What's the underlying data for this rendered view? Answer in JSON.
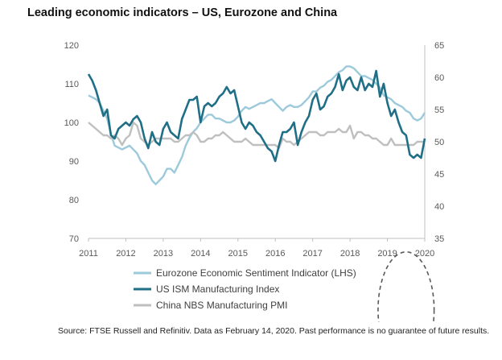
{
  "chart_data": {
    "type": "line",
    "title": "Leading economic indicators – US, Eurozone and China",
    "x_ticks": [
      "2011",
      "2012",
      "2013",
      "2014",
      "2015",
      "2016",
      "2017",
      "2018",
      "2019",
      "2020"
    ],
    "xlim": [
      2011,
      2020
    ],
    "y_left": {
      "ticks": [
        "120",
        "110",
        "100",
        "90",
        "80",
        "70"
      ],
      "ylim": [
        70,
        120
      ]
    },
    "y_right": {
      "ticks": [
        "65",
        "60",
        "55",
        "50",
        "45",
        "40",
        "35"
      ],
      "ylim": [
        35,
        65
      ]
    },
    "legend_position": "bottom",
    "series": [
      {
        "name": "Eurozone Economic Sentiment Indicator (LHS)",
        "axis": "left",
        "color": "#9ccadb",
        "points": [
          [
            2011.0,
            107
          ],
          [
            2011.1,
            106.5
          ],
          [
            2011.2,
            106
          ],
          [
            2011.3,
            105
          ],
          [
            2011.4,
            103
          ],
          [
            2011.5,
            101
          ],
          [
            2011.6,
            97
          ],
          [
            2011.7,
            94
          ],
          [
            2011.8,
            93.5
          ],
          [
            2011.9,
            93
          ],
          [
            2012.0,
            93.5
          ],
          [
            2012.1,
            94
          ],
          [
            2012.2,
            93
          ],
          [
            2012.3,
            92
          ],
          [
            2012.4,
            90
          ],
          [
            2012.5,
            89
          ],
          [
            2012.6,
            87
          ],
          [
            2012.7,
            85
          ],
          [
            2012.8,
            84
          ],
          [
            2012.9,
            85
          ],
          [
            2013.0,
            86
          ],
          [
            2013.1,
            88
          ],
          [
            2013.2,
            88
          ],
          [
            2013.3,
            87
          ],
          [
            2013.4,
            89
          ],
          [
            2013.5,
            91
          ],
          [
            2013.6,
            94
          ],
          [
            2013.7,
            96
          ],
          [
            2013.8,
            97.5
          ],
          [
            2013.9,
            98.5
          ],
          [
            2014.0,
            100
          ],
          [
            2014.1,
            101
          ],
          [
            2014.2,
            102
          ],
          [
            2014.3,
            102
          ],
          [
            2014.4,
            101
          ],
          [
            2014.5,
            101
          ],
          [
            2014.6,
            100.5
          ],
          [
            2014.7,
            100
          ],
          [
            2014.8,
            100
          ],
          [
            2014.9,
            100.5
          ],
          [
            2015.0,
            101.5
          ],
          [
            2015.1,
            103
          ],
          [
            2015.2,
            104
          ],
          [
            2015.3,
            103.5
          ],
          [
            2015.4,
            104
          ],
          [
            2015.5,
            104.5
          ],
          [
            2015.6,
            105
          ],
          [
            2015.7,
            105
          ],
          [
            2015.8,
            105.5
          ],
          [
            2015.9,
            106
          ],
          [
            2016.0,
            105
          ],
          [
            2016.1,
            104
          ],
          [
            2016.2,
            103
          ],
          [
            2016.3,
            104
          ],
          [
            2016.4,
            104.5
          ],
          [
            2016.5,
            104
          ],
          [
            2016.6,
            104
          ],
          [
            2016.7,
            104.5
          ],
          [
            2016.8,
            105.5
          ],
          [
            2016.9,
            106.5
          ],
          [
            2017.0,
            108
          ],
          [
            2017.1,
            108
          ],
          [
            2017.2,
            109
          ],
          [
            2017.3,
            109.5
          ],
          [
            2017.4,
            110.5
          ],
          [
            2017.5,
            111
          ],
          [
            2017.6,
            112
          ],
          [
            2017.7,
            113
          ],
          [
            2017.8,
            113.5
          ],
          [
            2017.9,
            114.5
          ],
          [
            2018.0,
            114.5
          ],
          [
            2018.1,
            114
          ],
          [
            2018.2,
            113
          ],
          [
            2018.3,
            112
          ],
          [
            2018.4,
            112
          ],
          [
            2018.5,
            111.5
          ],
          [
            2018.6,
            111
          ],
          [
            2018.7,
            110
          ],
          [
            2018.8,
            109
          ],
          [
            2018.9,
            107
          ],
          [
            2019.0,
            106.5
          ],
          [
            2019.1,
            106
          ],
          [
            2019.2,
            105
          ],
          [
            2019.3,
            104.5
          ],
          [
            2019.4,
            104
          ],
          [
            2019.5,
            103
          ],
          [
            2019.6,
            102.5
          ],
          [
            2019.7,
            101
          ],
          [
            2019.8,
            100.5
          ],
          [
            2019.9,
            101
          ],
          [
            2020.0,
            102.5
          ]
        ]
      },
      {
        "name": "US ISM Manufacturing Index",
        "axis": "right",
        "color": "#1f6f87",
        "points": [
          [
            2011.0,
            60.5
          ],
          [
            2011.1,
            59.5
          ],
          [
            2011.2,
            58
          ],
          [
            2011.3,
            56
          ],
          [
            2011.4,
            54
          ],
          [
            2011.5,
            55
          ],
          [
            2011.6,
            51
          ],
          [
            2011.7,
            50.5
          ],
          [
            2011.8,
            52
          ],
          [
            2011.9,
            52.5
          ],
          [
            2012.0,
            53
          ],
          [
            2012.1,
            52.5
          ],
          [
            2012.2,
            53.5
          ],
          [
            2012.3,
            54
          ],
          [
            2012.4,
            53
          ],
          [
            2012.5,
            50.5
          ],
          [
            2012.6,
            49
          ],
          [
            2012.7,
            51.5
          ],
          [
            2012.8,
            50
          ],
          [
            2012.9,
            49.5
          ],
          [
            2013.0,
            52
          ],
          [
            2013.1,
            53
          ],
          [
            2013.2,
            51.5
          ],
          [
            2013.3,
            51
          ],
          [
            2013.4,
            50.5
          ],
          [
            2013.5,
            53.5
          ],
          [
            2013.6,
            55
          ],
          [
            2013.7,
            56.5
          ],
          [
            2013.8,
            56.5
          ],
          [
            2013.9,
            57
          ],
          [
            2014.0,
            53
          ],
          [
            2014.1,
            55.5
          ],
          [
            2014.2,
            56
          ],
          [
            2014.3,
            55.5
          ],
          [
            2014.4,
            56
          ],
          [
            2014.5,
            57
          ],
          [
            2014.6,
            57.5
          ],
          [
            2014.7,
            58.5
          ],
          [
            2014.8,
            57.5
          ],
          [
            2014.9,
            58
          ],
          [
            2015.0,
            55.5
          ],
          [
            2015.1,
            53
          ],
          [
            2015.2,
            52
          ],
          [
            2015.3,
            53
          ],
          [
            2015.4,
            52.5
          ],
          [
            2015.5,
            51.5
          ],
          [
            2015.6,
            51
          ],
          [
            2015.7,
            50
          ],
          [
            2015.8,
            49
          ],
          [
            2015.9,
            48.5
          ],
          [
            2016.0,
            47
          ],
          [
            2016.1,
            49.5
          ],
          [
            2016.2,
            51.5
          ],
          [
            2016.3,
            51.5
          ],
          [
            2016.4,
            52
          ],
          [
            2016.5,
            53
          ],
          [
            2016.6,
            49.5
          ],
          [
            2016.7,
            51.5
          ],
          [
            2016.8,
            53
          ],
          [
            2016.9,
            54
          ],
          [
            2017.0,
            56.5
          ],
          [
            2017.1,
            57.5
          ],
          [
            2017.2,
            55
          ],
          [
            2017.3,
            55.5
          ],
          [
            2017.4,
            57
          ],
          [
            2017.5,
            57.5
          ],
          [
            2017.6,
            58.5
          ],
          [
            2017.7,
            60.5
          ],
          [
            2017.8,
            58
          ],
          [
            2017.9,
            59.5
          ],
          [
            2018.0,
            60
          ],
          [
            2018.1,
            58.5
          ],
          [
            2018.2,
            58
          ],
          [
            2018.3,
            60
          ],
          [
            2018.4,
            58
          ],
          [
            2018.5,
            59
          ],
          [
            2018.6,
            58.5
          ],
          [
            2018.7,
            61
          ],
          [
            2018.8,
            57
          ],
          [
            2018.9,
            59
          ],
          [
            2019.0,
            56
          ],
          [
            2019.1,
            54
          ],
          [
            2019.2,
            55
          ],
          [
            2019.3,
            53
          ],
          [
            2019.4,
            51.5
          ],
          [
            2019.5,
            51
          ],
          [
            2019.6,
            48
          ],
          [
            2019.7,
            47.5
          ],
          [
            2019.8,
            48
          ],
          [
            2019.9,
            47.5
          ],
          [
            2020.0,
            50.5
          ]
        ]
      },
      {
        "name": "China NBS Manufacturing PMI",
        "axis": "right",
        "color": "#bfbfbf",
        "points": [
          [
            2011.0,
            53
          ],
          [
            2011.1,
            52.5
          ],
          [
            2011.2,
            52
          ],
          [
            2011.3,
            51.5
          ],
          [
            2011.4,
            51
          ],
          [
            2011.5,
            51
          ],
          [
            2011.6,
            50.5
          ],
          [
            2011.7,
            51
          ],
          [
            2011.8,
            50.5
          ],
          [
            2011.9,
            49.5
          ],
          [
            2012.0,
            50.5
          ],
          [
            2012.1,
            51
          ],
          [
            2012.2,
            53
          ],
          [
            2012.3,
            52.5
          ],
          [
            2012.4,
            50.5
          ],
          [
            2012.5,
            50
          ],
          [
            2012.6,
            49.5
          ],
          [
            2012.7,
            50
          ],
          [
            2012.8,
            50.5
          ],
          [
            2012.9,
            50.5
          ],
          [
            2013.0,
            50.5
          ],
          [
            2013.1,
            50.5
          ],
          [
            2013.2,
            50.5
          ],
          [
            2013.3,
            50
          ],
          [
            2013.4,
            50
          ],
          [
            2013.5,
            50.5
          ],
          [
            2013.6,
            51
          ],
          [
            2013.7,
            51
          ],
          [
            2013.8,
            51.5
          ],
          [
            2013.9,
            51
          ],
          [
            2014.0,
            50
          ],
          [
            2014.1,
            50
          ],
          [
            2014.2,
            50.5
          ],
          [
            2014.3,
            50.5
          ],
          [
            2014.4,
            51
          ],
          [
            2014.5,
            51
          ],
          [
            2014.6,
            51.5
          ],
          [
            2014.7,
            51
          ],
          [
            2014.8,
            50.5
          ],
          [
            2014.9,
            50
          ],
          [
            2015.0,
            50
          ],
          [
            2015.1,
            50
          ],
          [
            2015.2,
            50.5
          ],
          [
            2015.3,
            50
          ],
          [
            2015.4,
            49.5
          ],
          [
            2015.5,
            49.5
          ],
          [
            2015.6,
            49.5
          ],
          [
            2015.7,
            49.5
          ],
          [
            2015.8,
            49.5
          ],
          [
            2015.9,
            49.5
          ],
          [
            2016.0,
            49.5
          ],
          [
            2016.1,
            49
          ],
          [
            2016.2,
            50.5
          ],
          [
            2016.3,
            50
          ],
          [
            2016.4,
            50
          ],
          [
            2016.5,
            49.5
          ],
          [
            2016.6,
            50
          ],
          [
            2016.7,
            50.5
          ],
          [
            2016.8,
            51
          ],
          [
            2016.9,
            51.5
          ],
          [
            2017.0,
            51.5
          ],
          [
            2017.1,
            51.5
          ],
          [
            2017.2,
            51
          ],
          [
            2017.3,
            51
          ],
          [
            2017.4,
            51.5
          ],
          [
            2017.5,
            51.5
          ],
          [
            2017.6,
            51.5
          ],
          [
            2017.7,
            52
          ],
          [
            2017.8,
            51.5
          ],
          [
            2017.9,
            51.5
          ],
          [
            2018.0,
            52.5
          ],
          [
            2018.1,
            50.5
          ],
          [
            2018.2,
            51.5
          ],
          [
            2018.3,
            51.5
          ],
          [
            2018.4,
            51
          ],
          [
            2018.5,
            51
          ],
          [
            2018.6,
            50.5
          ],
          [
            2018.7,
            50.5
          ],
          [
            2018.8,
            50
          ],
          [
            2018.9,
            49.5
          ],
          [
            2019.0,
            49.5
          ],
          [
            2019.1,
            50.5
          ],
          [
            2019.2,
            49.5
          ],
          [
            2019.3,
            49.5
          ],
          [
            2019.4,
            49.5
          ],
          [
            2019.5,
            49.5
          ],
          [
            2019.6,
            49.5
          ],
          [
            2019.7,
            49.5
          ],
          [
            2019.8,
            50
          ],
          [
            2019.9,
            50
          ],
          [
            2020.0,
            50
          ]
        ]
      }
    ],
    "annotation": {
      "type": "dashed-ellipse",
      "center": [
        2019.5,
        51.5
      ],
      "rx_years": 0.75,
      "ry": 15,
      "axis": "left",
      "note": "highlights 2019 decline"
    },
    "source": "Source: FTSE Russell and Refinitiv. Data as February 14, 2020. Past performance is no guarantee of future results."
  }
}
